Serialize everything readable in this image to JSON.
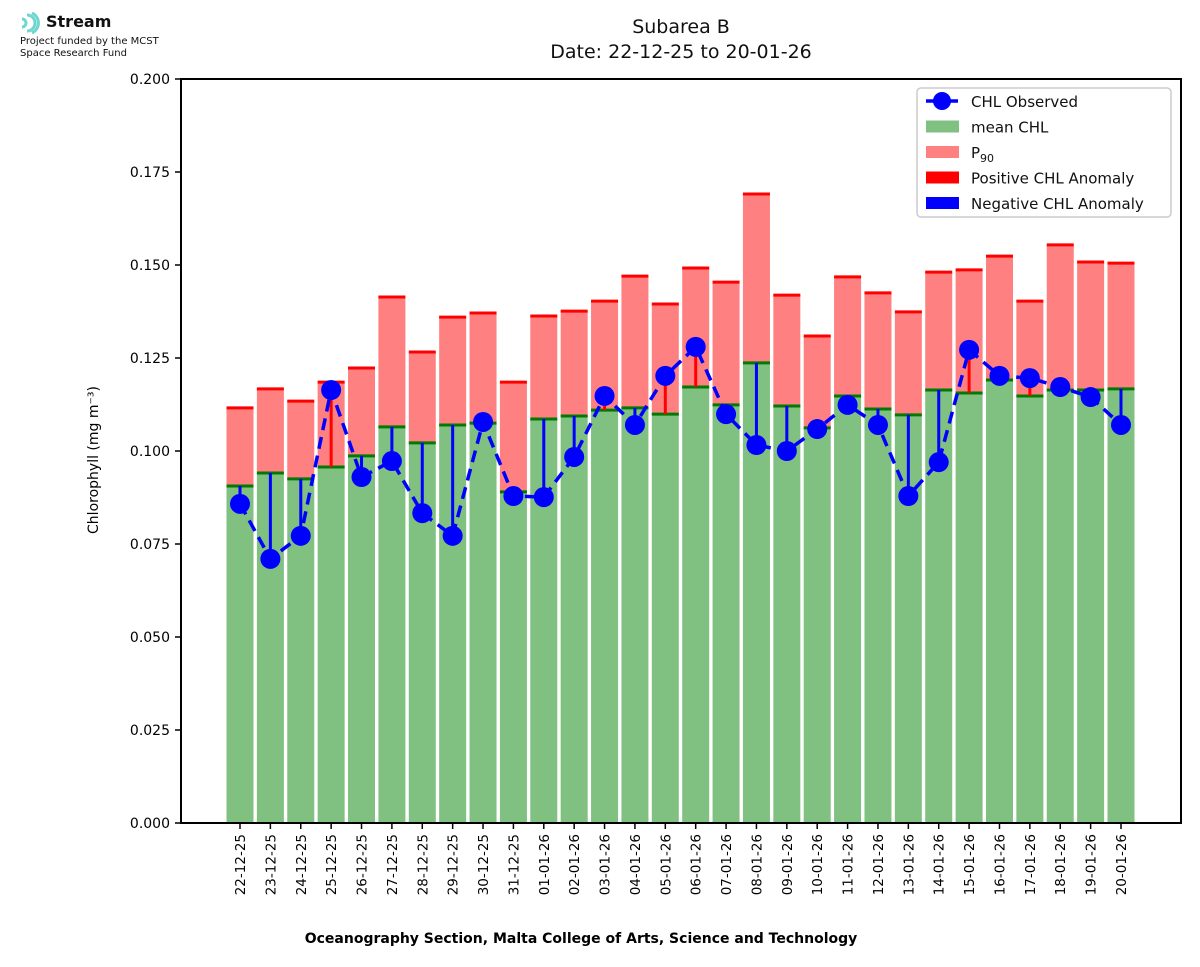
{
  "branding": {
    "logo_icon": "stream-waves-icon",
    "name": "Stream",
    "subtitle_line1": "Project funded by the MCST",
    "subtitle_line2": "Space Research Fund"
  },
  "colors": {
    "mean": "#80c080",
    "mean_edge": "#007a00",
    "p90": "#ff8080",
    "p90_edge": "#ff0000",
    "positive_anomaly": "#ff0000",
    "negative_anomaly": "#0000ff",
    "observed": "#0000ff"
  },
  "chart_data": {
    "type": "bar",
    "title": "Subarea B",
    "subtitle": "Date: 22-12-25 to 20-01-26",
    "xlabel": "Oceanography Section, Malta College of Arts, Science and Technology",
    "ylabel": "Chlorophyll (mg m⁻³)",
    "ylim": [
      0,
      0.2
    ],
    "yticks": [
      "0.000",
      "0.025",
      "0.050",
      "0.075",
      "0.100",
      "0.125",
      "0.150",
      "0.175",
      "0.200"
    ],
    "grid": false,
    "legend_position": "top-right",
    "legend": [
      "CHL Observed",
      "mean CHL",
      "P₉₀",
      "Positive CHL Anomaly",
      "Negative CHL Anomaly"
    ],
    "categories": [
      "22-12-25",
      "23-12-25",
      "24-12-25",
      "25-12-25",
      "26-12-25",
      "27-12-25",
      "28-12-25",
      "29-12-25",
      "30-12-25",
      "31-12-25",
      "01-01-26",
      "02-01-26",
      "03-01-26",
      "04-01-26",
      "05-01-26",
      "06-01-26",
      "07-01-26",
      "08-01-26",
      "09-01-26",
      "10-01-26",
      "11-01-26",
      "12-01-26",
      "13-01-26",
      "14-01-26",
      "15-01-26",
      "16-01-26",
      "17-01-26",
      "18-01-26",
      "19-01-26",
      "20-01-26"
    ],
    "series": [
      {
        "name": "mean CHL",
        "values": [
          0.0906,
          0.0941,
          0.0925,
          0.0957,
          0.0987,
          0.1065,
          0.1022,
          0.107,
          0.1075,
          0.089,
          0.1086,
          0.1094,
          0.111,
          0.1116,
          0.1099,
          0.1172,
          0.1124,
          0.1237,
          0.1121,
          0.1062,
          0.1148,
          0.1113,
          0.1097,
          0.1164,
          0.1156,
          0.1191,
          0.1148,
          0.1164,
          0.1164,
          0.1167
        ]
      },
      {
        "name": "P90",
        "values": [
          0.1116,
          0.1167,
          0.1134,
          0.1185,
          0.1223,
          0.1414,
          0.1266,
          0.136,
          0.1371,
          0.1185,
          0.1363,
          0.1376,
          0.1403,
          0.147,
          0.1395,
          0.1492,
          0.1454,
          0.1691,
          0.1419,
          0.1309,
          0.1468,
          0.1425,
          0.1374,
          0.1481,
          0.1487,
          0.1524,
          0.1403,
          0.1554,
          0.1508,
          0.1505
        ]
      },
      {
        "name": "CHL Observed",
        "values": [
          0.0858,
          0.071,
          0.0772,
          0.1164,
          0.093,
          0.0973,
          0.0833,
          0.0772,
          0.1078,
          0.0879,
          0.0876,
          0.0984,
          0.1148,
          0.107,
          0.1202,
          0.128,
          0.1099,
          0.1016,
          0.1,
          0.1059,
          0.1124,
          0.107,
          0.0879,
          0.097,
          0.1272,
          0.1202,
          0.1196,
          0.1172,
          0.1145,
          0.107
        ]
      }
    ]
  }
}
